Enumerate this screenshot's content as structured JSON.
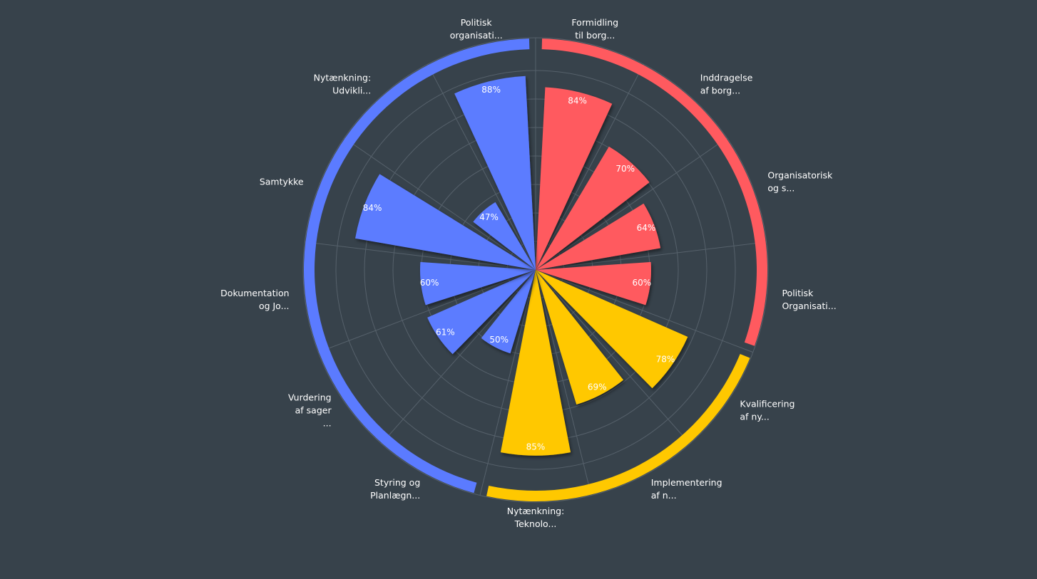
{
  "chart_data": {
    "type": "bar",
    "subtype": "polar",
    "title": "",
    "radial_range": [
      19,
      100
    ],
    "grid": true,
    "legend": "none",
    "value_suffix": "%",
    "colors": {
      "red": "#ff5a5f",
      "yellow": "#ffc800",
      "blue": "#5b7bff",
      "background": "#37424b",
      "grid": "#56616b"
    },
    "groups": [
      {
        "color": "#ff5a5f",
        "start": 0,
        "count": 4
      },
      {
        "color": "#ffc800",
        "start": 4,
        "count": 3
      },
      {
        "color": "#5b7bff",
        "start": 7,
        "count": 6
      }
    ],
    "categories": [
      [
        "Formidling",
        "til borg..."
      ],
      [
        "Inddragelse",
        "af borg..."
      ],
      [
        "Organisatorisk",
        "og s..."
      ],
      [
        "Politisk",
        "Organisati..."
      ],
      [
        "Kvalificering",
        "af ny..."
      ],
      [
        "Implementering",
        "af n..."
      ],
      [
        "Nytænkning:",
        "Teknolo..."
      ],
      [
        "Styring og",
        "Planlægn..."
      ],
      [
        "Vurdering",
        "af sager",
        "..."
      ],
      [
        "Dokumentation",
        "og Jo..."
      ],
      [
        "Samtykke"
      ],
      [
        "Nytænkning:",
        "Udvikli..."
      ],
      [
        "Politisk",
        "organisati..."
      ]
    ],
    "values": [
      84,
      70,
      64,
      60,
      78,
      69,
      85,
      50,
      61,
      60,
      84,
      47,
      88
    ]
  }
}
